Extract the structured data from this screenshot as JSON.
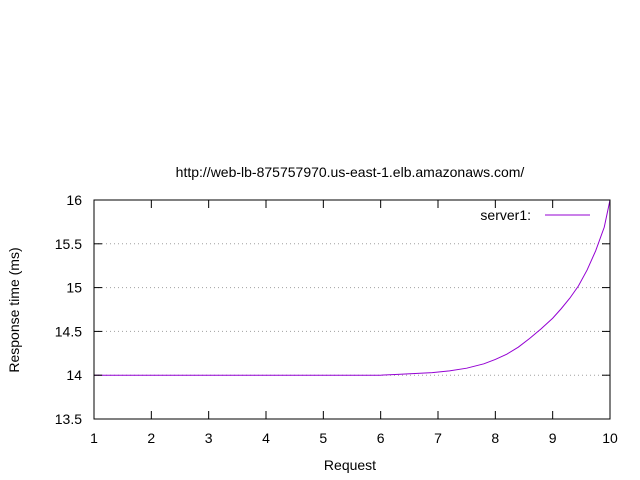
{
  "chart_data": {
    "type": "line",
    "title": "http://web-lb-875757970.us-east-1.elb.amazonaws.com/",
    "xlabel": "Request",
    "ylabel": "Response time (ms)",
    "xlim": [
      1,
      10
    ],
    "ylim": [
      13.5,
      16
    ],
    "xticks": [
      "1",
      "2",
      "3",
      "4",
      "5",
      "6",
      "7",
      "8",
      "9",
      "10"
    ],
    "yticks": [
      "13.5",
      "14",
      "14.5",
      "15",
      "15.5",
      "16"
    ],
    "grid": "horizontal dotted",
    "legend_position": "top-right",
    "series": [
      {
        "name": "server1:",
        "color": "#9400d3",
        "x": [
          1,
          2,
          3,
          4,
          5,
          5.5,
          6,
          6.3,
          6.6,
          6.9,
          7.2,
          7.5,
          7.8,
          8.0,
          8.2,
          8.4,
          8.6,
          8.8,
          9.0,
          9.15,
          9.3,
          9.45,
          9.6,
          9.75,
          9.9,
          10
        ],
        "y": [
          14.0,
          14.0,
          14.0,
          14.0,
          14.0,
          14.0,
          14.0,
          14.01,
          14.02,
          14.03,
          14.05,
          14.08,
          14.13,
          14.18,
          14.24,
          14.32,
          14.42,
          14.53,
          14.65,
          14.76,
          14.88,
          15.02,
          15.2,
          15.42,
          15.69,
          16.0
        ]
      }
    ]
  }
}
